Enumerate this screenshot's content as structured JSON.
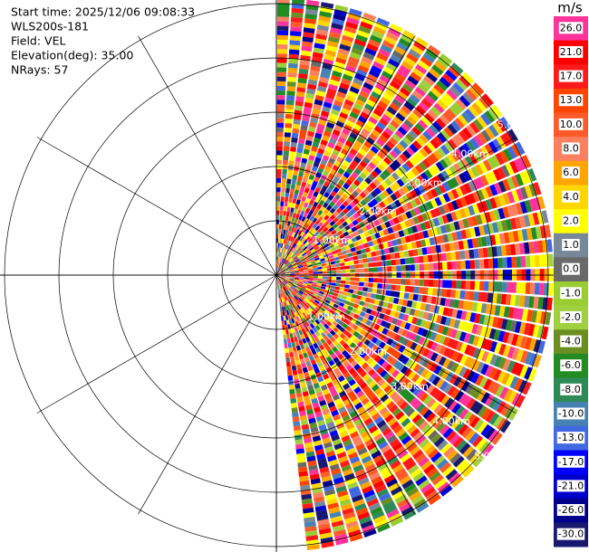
{
  "chart_data": {
    "type": "ppi",
    "info": [
      "Start time: 2025/12/06 09:08:33",
      "WLS200s-181",
      "Field: VEL",
      "Elevation(deg): 35.00",
      "NRays: 57"
    ],
    "rlim": [
      0,
      5
    ],
    "rticks": [
      {
        "value": 1,
        "label": "1.00km"
      },
      {
        "value": 2,
        "label": "2.00km"
      },
      {
        "value": 3,
        "label": "3.00km"
      },
      {
        "value": 4,
        "label": "4.00km"
      },
      {
        "value": 5,
        "label": "5.00km"
      }
    ],
    "colorbar": {
      "unit": "m/s",
      "ticks": [
        {
          "value": 26,
          "label": "26.0"
        },
        {
          "value": 21,
          "label": "21.0"
        },
        {
          "value": 17,
          "label": "17.0"
        },
        {
          "value": 13,
          "label": "13.0"
        },
        {
          "value": 10,
          "label": "10.0"
        },
        {
          "value": 8,
          "label": "8.0"
        },
        {
          "value": 6,
          "label": "6.0"
        },
        {
          "value": 4,
          "label": "4.0"
        },
        {
          "value": 2,
          "label": "2.0"
        },
        {
          "value": 1,
          "label": "1.0"
        },
        {
          "value": 0,
          "label": "0.0"
        },
        {
          "value": -1,
          "label": "-1.0"
        },
        {
          "value": -2,
          "label": "-2.0"
        },
        {
          "value": -4,
          "label": "-4.0"
        },
        {
          "value": -6,
          "label": "-6.0"
        },
        {
          "value": -8,
          "label": "-8.0"
        },
        {
          "value": -10,
          "label": "-10.0"
        },
        {
          "value": -13,
          "label": "-13.0"
        },
        {
          "value": -17,
          "label": "-17.0"
        },
        {
          "value": -21,
          "label": "-21.0"
        },
        {
          "value": -26,
          "label": "-26.0"
        },
        {
          "value": -30,
          "label": "-30.0"
        }
      ],
      "colors": [
        "#ff3399",
        "#ff0000",
        "#ff1a1a",
        "#ff4500",
        "#ff5a2a",
        "#fa8060",
        "#ffa500",
        "#ffd700",
        "#ffff00",
        "#778899",
        "#696969",
        "#9acd32",
        "#a0d040",
        "#6b8e23",
        "#228b22",
        "#2e8b57",
        "#4682b4",
        "#4169e1",
        "#0000ff",
        "#0000cd",
        "#00008b",
        "#191970"
      ]
    }
  }
}
